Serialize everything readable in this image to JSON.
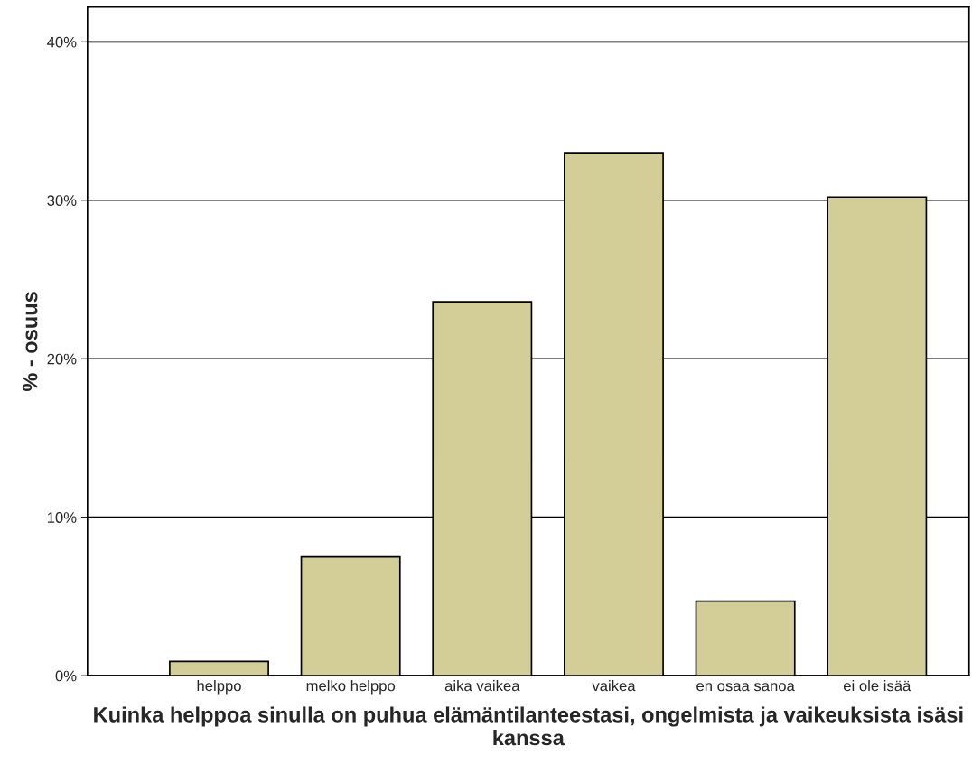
{
  "chart_data": {
    "type": "bar",
    "xlabel": "Kuinka helppoa sinulla on puhua elämäntilanteestasi, ongelmista ja vaikeuksista isäsi kanssa",
    "ylabel": "% - osuus",
    "categories": [
      "helppo",
      "melko helppo",
      "aika vaikea",
      "vaikea",
      "en osaa sanoa",
      "ei ole isää"
    ],
    "values": [
      0.9,
      7.5,
      23.6,
      33.0,
      4.7,
      30.2
    ],
    "color": "#d3ce97",
    "ylim": [
      0,
      42.2
    ],
    "yticks": [
      {
        "value": 0,
        "label": "0%"
      },
      {
        "value": 10,
        "label": "10%"
      },
      {
        "value": 20,
        "label": "20%"
      },
      {
        "value": 30,
        "label": "30%"
      },
      {
        "value": 40,
        "label": "40%"
      }
    ],
    "grid": "y"
  }
}
